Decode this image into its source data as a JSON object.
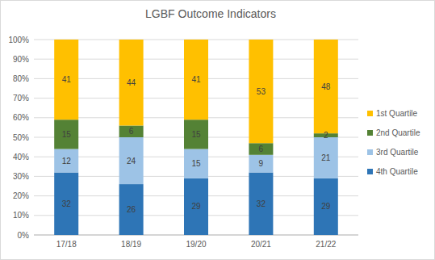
{
  "chart_data": {
    "type": "bar",
    "title": "LGBF Outcome Indicators",
    "categories": [
      "17/18",
      "18/19",
      "19/20",
      "20/21",
      "21/22"
    ],
    "series": [
      {
        "name": "4th Quartile",
        "color": "#2E75B6",
        "values": [
          32,
          26,
          29,
          32,
          29
        ]
      },
      {
        "name": "3rd Quartile",
        "color": "#9DC3E6",
        "values": [
          12,
          24,
          15,
          9,
          21
        ]
      },
      {
        "name": "2nd Quartile",
        "color": "#548235",
        "values": [
          15,
          6,
          15,
          6,
          2
        ]
      },
      {
        "name": "1st Quartile",
        "color": "#FFC000",
        "values": [
          41,
          44,
          41,
          53,
          48
        ]
      }
    ],
    "stacked": true,
    "data_labels": true,
    "ylim": [
      0,
      100
    ],
    "yticks": [
      {
        "value": 0,
        "label": "0%"
      },
      {
        "value": 10,
        "label": "10%"
      },
      {
        "value": 20,
        "label": "20%"
      },
      {
        "value": 30,
        "label": "30%"
      },
      {
        "value": 40,
        "label": "40%"
      },
      {
        "value": 50,
        "label": "50%"
      },
      {
        "value": 60,
        "label": "60%"
      },
      {
        "value": 70,
        "label": "70%"
      },
      {
        "value": 80,
        "label": "80%"
      },
      {
        "value": 90,
        "label": "90%"
      },
      {
        "value": 100,
        "label": "100%"
      }
    ],
    "grid": true,
    "legend": "right"
  }
}
